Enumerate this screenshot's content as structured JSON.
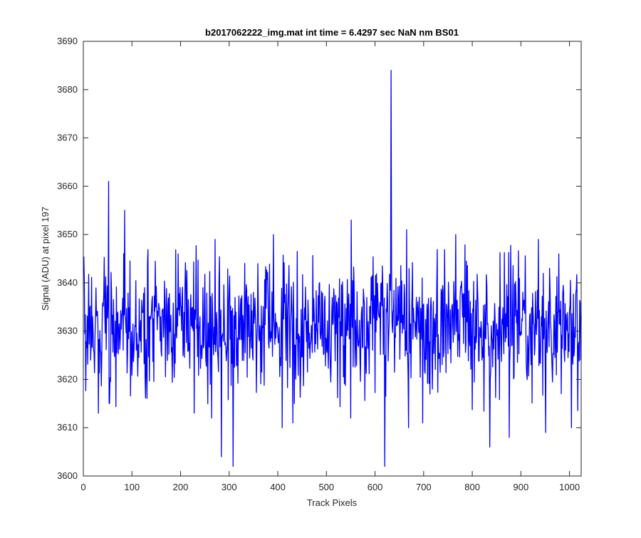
{
  "chart_data": {
    "type": "line",
    "title": "b2017062222_img.mat int time = 6.4297 sec  NaN nm BS01",
    "xlabel": "Track Pixels",
    "ylabel": "Signal (ADU) at pixel 197",
    "xlim": [
      0,
      1024
    ],
    "ylim": [
      3600,
      3690
    ],
    "xticks": [
      0,
      100,
      200,
      300,
      400,
      500,
      600,
      700,
      800,
      900,
      1000
    ],
    "yticks": [
      3600,
      3610,
      3620,
      3630,
      3640,
      3650,
      3660,
      3670,
      3680,
      3690
    ],
    "grid": false,
    "series": [
      {
        "color": "#0000ff",
        "n_points": 1024,
        "baseline": 3631,
        "noise_range": [
          3613,
          3648
        ],
        "peaks": [
          {
            "x": 30,
            "y": 3650
          },
          {
            "x": 51,
            "y": 3661
          },
          {
            "x": 84,
            "y": 3655
          },
          {
            "x": 270,
            "y": 3649
          },
          {
            "x": 390,
            "y": 3650
          },
          {
            "x": 550,
            "y": 3653
          },
          {
            "x": 632,
            "y": 3684
          },
          {
            "x": 664,
            "y": 3651
          },
          {
            "x": 765,
            "y": 3650
          },
          {
            "x": 935,
            "y": 3649
          }
        ],
        "dips": [
          {
            "x": 30,
            "y": 3613
          },
          {
            "x": 53,
            "y": 3615
          },
          {
            "x": 263,
            "y": 3612
          },
          {
            "x": 283,
            "y": 3604
          },
          {
            "x": 307,
            "y": 3602
          },
          {
            "x": 408,
            "y": 3610
          },
          {
            "x": 430,
            "y": 3611
          },
          {
            "x": 549,
            "y": 3612
          },
          {
            "x": 619,
            "y": 3602
          },
          {
            "x": 668,
            "y": 3610
          },
          {
            "x": 697,
            "y": 3611
          },
          {
            "x": 835,
            "y": 3606
          },
          {
            "x": 875,
            "y": 3608
          },
          {
            "x": 950,
            "y": 3609
          },
          {
            "x": 1003,
            "y": 3610
          }
        ]
      }
    ]
  }
}
